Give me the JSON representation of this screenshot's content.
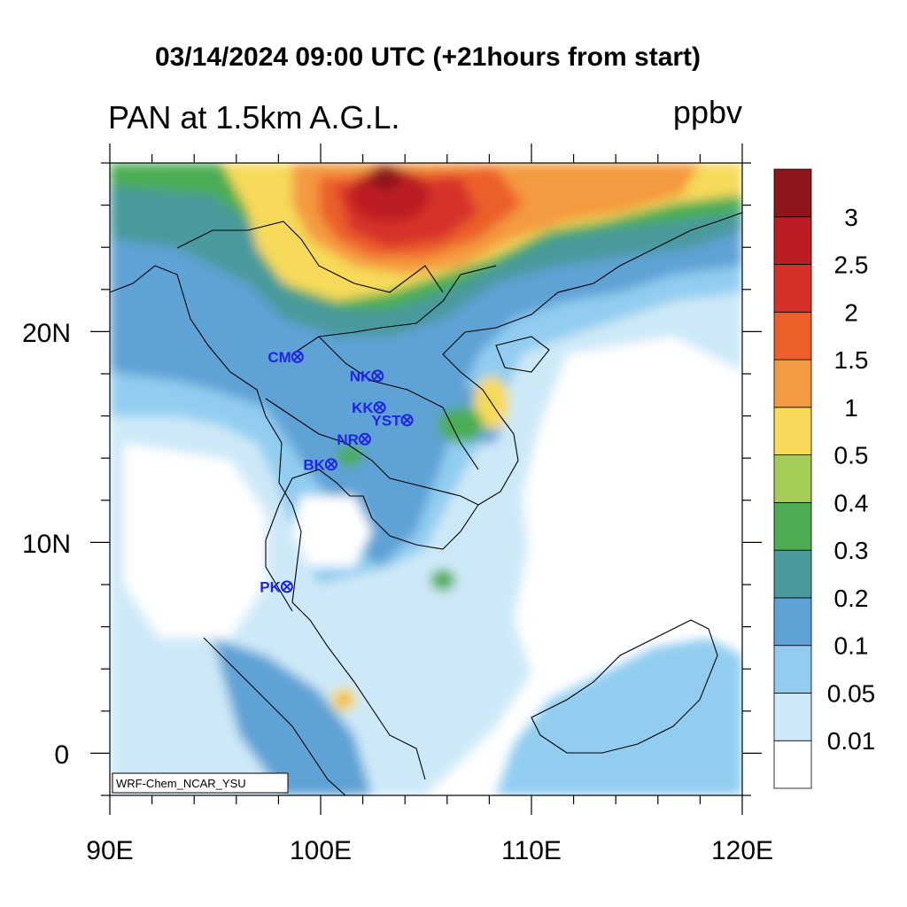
{
  "title": "03/14/2024 09:00 UTC (+21hours from start)",
  "subtitle": "PAN at 1.5km A.G.L.",
  "units": "ppbv",
  "credit": "WRF-Chem_NCAR_YSU",
  "lon_labels": [
    "90E",
    "100E",
    "110E",
    "120E"
  ],
  "lat_labels": [
    "20N",
    "10N",
    "0"
  ],
  "colorbar": {
    "colors": [
      "#ffffff",
      "#cde9f8",
      "#92cdf0",
      "#5fa2d6",
      "#4a9a9c",
      "#4cad55",
      "#a5cd53",
      "#f7da5a",
      "#f49a40",
      "#ec5f2a",
      "#d6302a",
      "#bb1d22",
      "#8e171c"
    ],
    "labels": [
      "0.01",
      "0.05",
      "0.1",
      "0.2",
      "0.3",
      "0.4",
      "0.5",
      "1",
      "1.5",
      "2",
      "2.5",
      "3"
    ]
  },
  "stations": [
    {
      "id": "CM",
      "lon": 98.9,
      "lat": 18.8
    },
    {
      "id": "NK",
      "lon": 102.7,
      "lat": 17.9
    },
    {
      "id": "KK",
      "lon": 102.8,
      "lat": 16.4
    },
    {
      "id": "YST",
      "lon": 104.1,
      "lat": 15.8
    },
    {
      "id": "NR",
      "lon": 102.1,
      "lat": 14.9
    },
    {
      "id": "BK",
      "lon": 100.5,
      "lat": 13.7
    },
    {
      "id": "PK",
      "lon": 98.4,
      "lat": 7.9
    }
  ],
  "map": {
    "lon_range": [
      90,
      120
    ],
    "lat_range": [
      -2,
      28
    ]
  }
}
